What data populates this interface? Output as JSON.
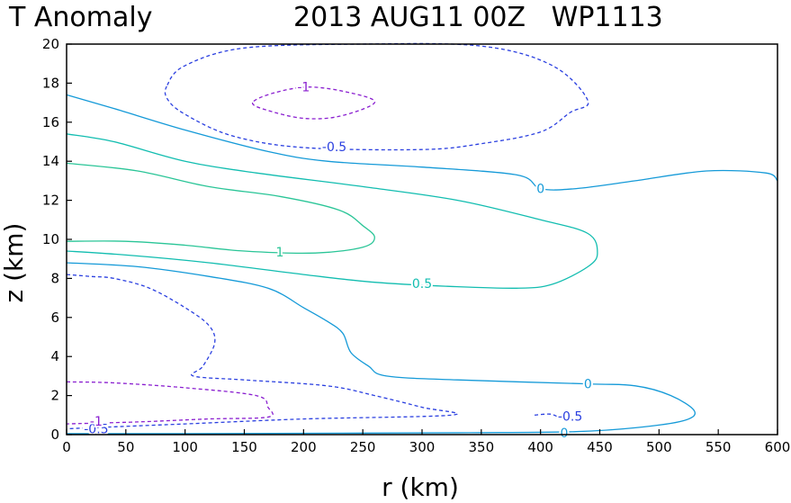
{
  "chart_data": {
    "type": "contour",
    "title_left": "T Anomaly",
    "title_right": "2013 AUG11 00Z   WP1113",
    "xlabel": "r (km)",
    "ylabel": "z (km)",
    "xlim": [
      0,
      600
    ],
    "ylim": [
      0,
      20
    ],
    "xticks": [
      "0",
      "50",
      "100",
      "150",
      "200",
      "250",
      "300",
      "350",
      "400",
      "450",
      "500",
      "550",
      "600"
    ],
    "yticks": [
      "0",
      "2",
      "4",
      "6",
      "8",
      "10",
      "12",
      "14",
      "16",
      "18",
      "20"
    ],
    "colors": {
      "neg1": "#8a1fd0",
      "neg05": "#2a3fe0",
      "zero": "#159ad8",
      "pos05": "#12bdb0",
      "pos1": "#2ac597"
    },
    "contours": [
      {
        "level": "-1",
        "style": "neg1",
        "dashed": true,
        "closed": true,
        "points": [
          [
            157,
            17.0
          ],
          [
            170,
            16.6
          ],
          [
            200,
            16.2
          ],
          [
            230,
            16.3
          ],
          [
            260,
            17.0
          ],
          [
            240,
            17.5
          ],
          [
            205,
            17.8
          ],
          [
            175,
            17.5
          ]
        ]
      },
      {
        "level": "-1",
        "style": "neg1",
        "dashed": true,
        "closed": false,
        "points": [
          [
            0,
            2.7
          ],
          [
            40,
            2.65
          ],
          [
            100,
            2.4
          ],
          [
            160,
            2.0
          ],
          [
            170,
            1.4
          ],
          [
            170,
            0.9
          ],
          [
            120,
            0.8
          ],
          [
            60,
            0.65
          ],
          [
            0,
            0.55
          ]
        ]
      },
      {
        "level": "-0.5",
        "style": "neg05",
        "dashed": true,
        "closed": true,
        "points": [
          [
            85,
            17.9
          ],
          [
            100,
            18.9
          ],
          [
            150,
            19.8
          ],
          [
            250,
            20.0
          ],
          [
            350,
            19.9
          ],
          [
            410,
            18.9
          ],
          [
            440,
            17.1
          ],
          [
            425,
            16.5
          ],
          [
            400,
            15.5
          ],
          [
            350,
            14.9
          ],
          [
            300,
            14.6
          ],
          [
            200,
            14.7
          ],
          [
            140,
            15.3
          ],
          [
            100,
            16.4
          ],
          [
            85,
            17.2
          ]
        ]
      },
      {
        "level": "-0.5",
        "style": "neg05",
        "dashed": true,
        "closed": false,
        "points": [
          [
            0,
            8.2
          ],
          [
            20,
            8.1
          ],
          [
            40,
            8.0
          ],
          [
            70,
            7.5
          ],
          [
            100,
            6.5
          ],
          [
            120,
            5.6
          ],
          [
            125,
            4.7
          ],
          [
            115,
            3.5
          ],
          [
            107,
            3.0
          ],
          [
            150,
            2.8
          ],
          [
            220,
            2.5
          ],
          [
            260,
            2.0
          ],
          [
            300,
            1.4
          ],
          [
            325,
            1.0
          ],
          [
            200,
            0.8
          ],
          [
            100,
            0.55
          ],
          [
            0,
            0.3
          ]
        ]
      },
      {
        "level": "-0.5",
        "style": "neg05",
        "dashed": true,
        "closed": false,
        "points": [
          [
            395,
            1.0
          ],
          [
            408,
            1.05
          ],
          [
            415,
            0.9
          ]
        ]
      },
      {
        "level": "0",
        "style": "zero",
        "dashed": false,
        "closed": false,
        "points": [
          [
            0,
            17.4
          ],
          [
            40,
            16.7
          ],
          [
            100,
            15.6
          ],
          [
            170,
            14.5
          ],
          [
            220,
            14.0
          ],
          [
            300,
            13.7
          ],
          [
            380,
            13.3
          ],
          [
            400,
            12.6
          ],
          [
            430,
            12.6
          ],
          [
            480,
            13.0
          ],
          [
            540,
            13.5
          ],
          [
            590,
            13.4
          ],
          [
            600,
            13.0
          ]
        ]
      },
      {
        "level": "0",
        "style": "zero",
        "dashed": false,
        "closed": false,
        "points": [
          [
            0,
            8.8
          ],
          [
            60,
            8.6
          ],
          [
            120,
            8.1
          ],
          [
            170,
            7.5
          ],
          [
            200,
            6.5
          ],
          [
            220,
            5.8
          ],
          [
            233,
            5.2
          ],
          [
            240,
            4.2
          ],
          [
            255,
            3.5
          ],
          [
            270,
            3.0
          ],
          [
            330,
            2.8
          ],
          [
            440,
            2.6
          ],
          [
            480,
            2.5
          ],
          [
            510,
            2.0
          ],
          [
            530,
            1.2
          ],
          [
            520,
            0.7
          ],
          [
            480,
            0.35
          ],
          [
            430,
            0.15
          ],
          [
            350,
            0.1
          ],
          [
            250,
            0.08
          ],
          [
            100,
            0.05
          ],
          [
            0,
            0.05
          ]
        ]
      },
      {
        "level": "0.5",
        "style": "pos05",
        "dashed": false,
        "closed": false,
        "points": [
          [
            0,
            15.4
          ],
          [
            40,
            15.0
          ],
          [
            100,
            14.0
          ],
          [
            160,
            13.4
          ],
          [
            250,
            12.7
          ],
          [
            330,
            12.0
          ],
          [
            400,
            11.0
          ],
          [
            440,
            10.3
          ],
          [
            448,
            9.3
          ],
          [
            440,
            8.6
          ],
          [
            410,
            7.7
          ],
          [
            380,
            7.5
          ],
          [
            320,
            7.6
          ],
          [
            260,
            7.8
          ],
          [
            200,
            8.2
          ],
          [
            120,
            8.8
          ],
          [
            50,
            9.2
          ],
          [
            0,
            9.4
          ]
        ]
      },
      {
        "level": "1",
        "style": "pos1",
        "dashed": false,
        "closed": false,
        "points": [
          [
            0,
            13.9
          ],
          [
            60,
            13.5
          ],
          [
            120,
            12.7
          ],
          [
            180,
            12.2
          ],
          [
            230,
            11.5
          ],
          [
            250,
            10.7
          ],
          [
            260,
            10.1
          ],
          [
            250,
            9.6
          ],
          [
            210,
            9.3
          ],
          [
            150,
            9.4
          ],
          [
            100,
            9.7
          ],
          [
            50,
            9.9
          ],
          [
            0,
            9.9
          ]
        ]
      }
    ],
    "contour_labels": [
      {
        "text": "-1",
        "x": 200,
        "y": 17.8,
        "style": "neg1"
      },
      {
        "text": "-0.5",
        "x": 226,
        "y": 14.75,
        "style": "neg05"
      },
      {
        "text": "0",
        "x": 400,
        "y": 12.6,
        "style": "zero"
      },
      {
        "text": "1",
        "x": 180,
        "y": 9.35,
        "style": "pos1"
      },
      {
        "text": "0.5",
        "x": 300,
        "y": 7.75,
        "style": "pos05"
      },
      {
        "text": "0",
        "x": 440,
        "y": 2.6,
        "style": "zero"
      },
      {
        "text": "-0.5",
        "x": 425,
        "y": 0.95,
        "style": "neg05"
      },
      {
        "text": "-0.5",
        "x": 25,
        "y": 0.3,
        "style": "neg05"
      },
      {
        "text": "0",
        "x": 420,
        "y": 0.1,
        "style": "zero"
      },
      {
        "text": "-1",
        "x": 25,
        "y": 0.7,
        "style": "neg1"
      }
    ]
  }
}
